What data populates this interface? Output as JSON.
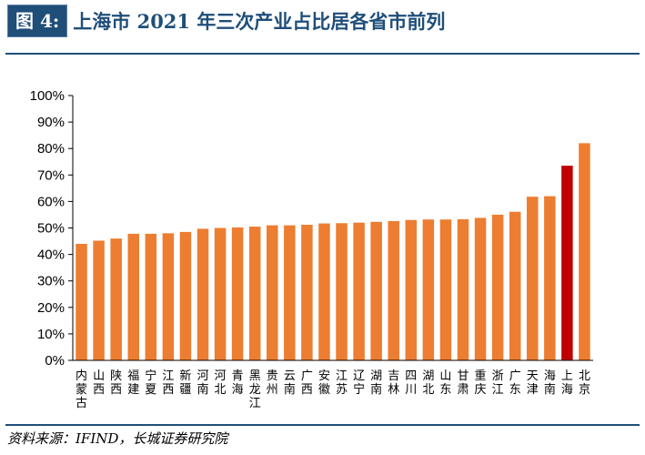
{
  "header": {
    "figure_label": "图 4:",
    "title": "上海市 2021 年三次产业占比居各省市前列"
  },
  "source": "资料来源：IFIND，长城证券研究院",
  "colors": {
    "bar": "#ed7d31",
    "highlight": "#c00000",
    "rule": "#1f4e79",
    "axis": "#000000"
  },
  "chart_data": {
    "type": "bar",
    "title": "",
    "xlabel": "",
    "ylabel": "",
    "ylim": [
      0,
      100
    ],
    "yticks": [
      "0%",
      "10%",
      "20%",
      "30%",
      "40%",
      "50%",
      "60%",
      "70%",
      "80%",
      "90%",
      "100%"
    ],
    "grid": false,
    "legend": "none",
    "highlight_category": "上海",
    "categories": [
      "内蒙古",
      "山西",
      "陕西",
      "福建",
      "宁夏",
      "江西",
      "新疆",
      "河南",
      "河北",
      "青海",
      "黑龙江",
      "贵州",
      "云南",
      "广西",
      "安徽",
      "江苏",
      "辽宁",
      "湖南",
      "吉林",
      "四川",
      "湖北",
      "山东",
      "甘肃",
      "重庆",
      "浙江",
      "广东",
      "天津",
      "海南",
      "上海",
      "北京"
    ],
    "values": [
      44,
      45.2,
      46,
      47.8,
      47.8,
      48,
      48.5,
      49.7,
      50,
      50.2,
      50.5,
      51,
      51,
      51.2,
      51.7,
      51.8,
      52,
      52.3,
      52.6,
      53,
      53.2,
      53.2,
      53.3,
      53.8,
      55,
      56.1,
      61.8,
      62,
      73.5,
      82
    ]
  }
}
